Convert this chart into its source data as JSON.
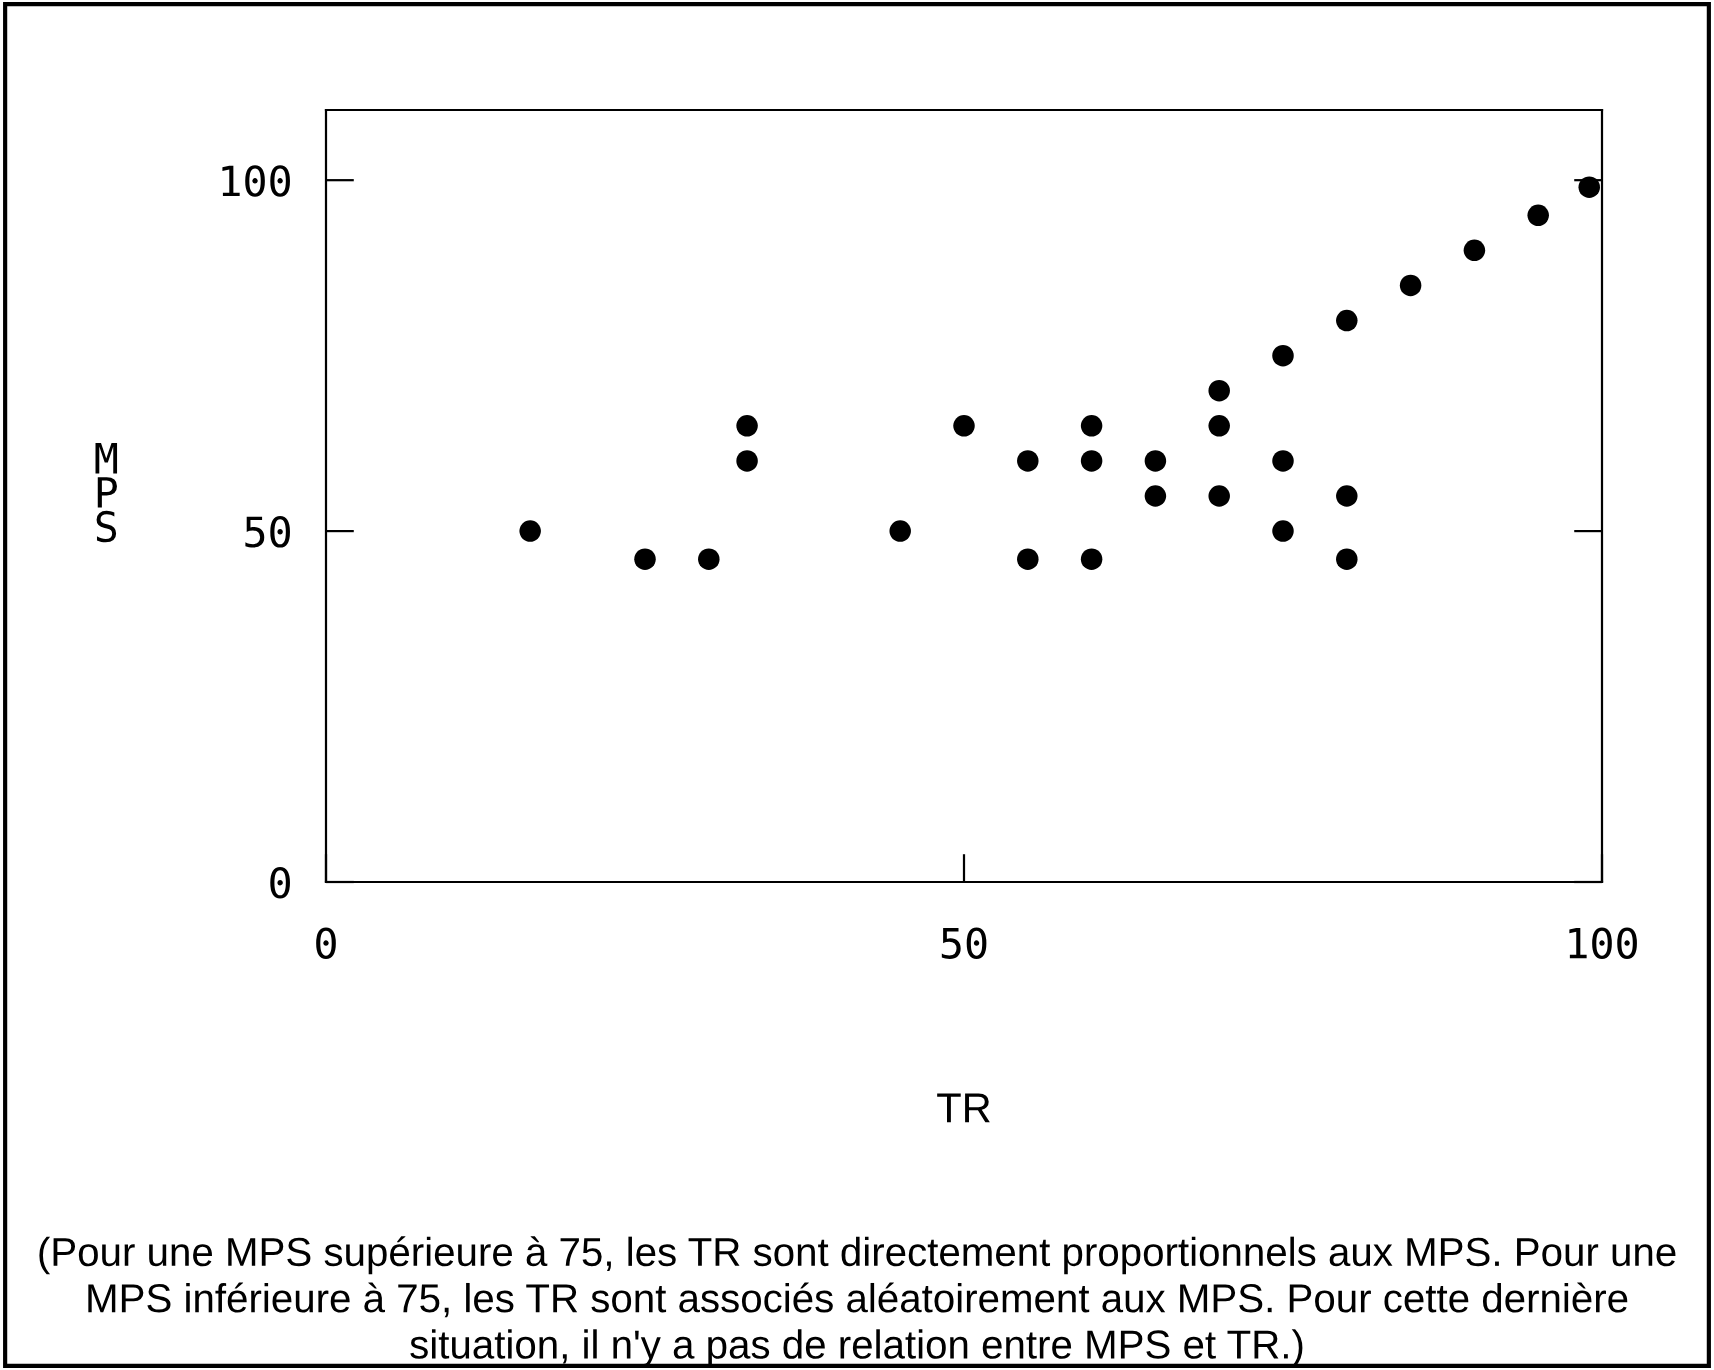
{
  "chart_data": {
    "type": "scatter",
    "xlabel": "TR",
    "ylabel": "MPS",
    "x": [
      16,
      25,
      30,
      33,
      33,
      45,
      50,
      55,
      55,
      60,
      60,
      60,
      65,
      65,
      70,
      70,
      70,
      75,
      75,
      75,
      80,
      80,
      80,
      85,
      90,
      95,
      99
    ],
    "values": [
      50,
      46,
      46,
      65,
      60,
      50,
      65,
      60,
      46,
      65,
      60,
      46,
      60,
      55,
      70,
      65,
      55,
      75,
      60,
      50,
      80,
      55,
      46,
      85,
      90,
      95,
      99
    ],
    "color": "#000000",
    "marker": "circle",
    "xlim": [
      0,
      100
    ],
    "ylim": [
      0,
      110
    ],
    "xticks": [
      0,
      50,
      100
    ],
    "yticks": [
      0,
      50,
      100
    ],
    "grid": false,
    "legend": false,
    "annotations": [
      "(Pour une MPS supérieure à 75, les TR sont directement proportionnels aux MPS. Pour une MPS inférieure à 75, les TR sont associés aléatoirement aux MPS. Pour cette dernière situation, il n'y a pas de relation entre MPS et TR.)"
    ]
  }
}
